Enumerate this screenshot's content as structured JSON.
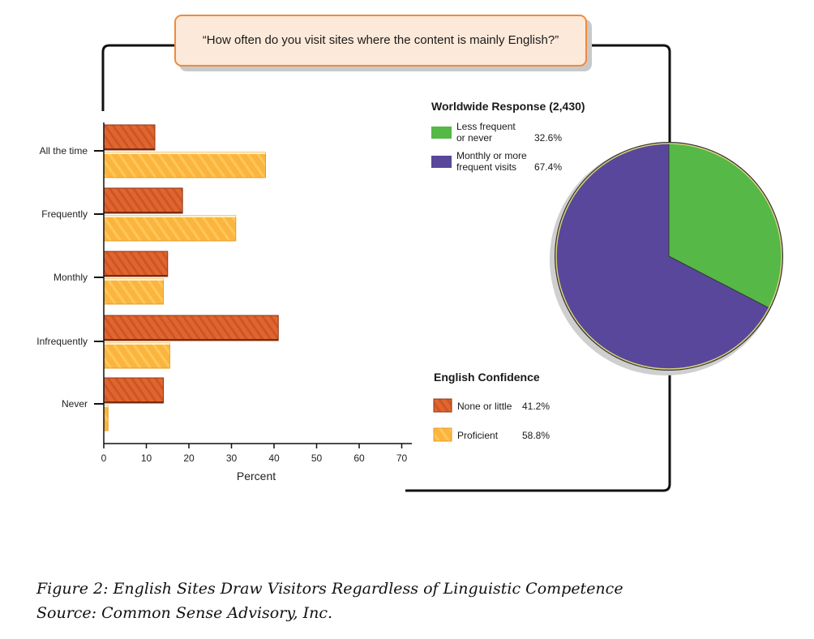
{
  "question": "“How often do you visit sites where the content is mainly English?”",
  "chart_data": [
    {
      "type": "bar",
      "orientation": "horizontal",
      "categories": [
        "All the time",
        "Frequently",
        "Monthly",
        "Infrequently",
        "Never"
      ],
      "series": [
        {
          "name": "None or little",
          "values": [
            12,
            18.5,
            15,
            41,
            14
          ]
        },
        {
          "name": "Proficient",
          "values": [
            38,
            31,
            14,
            15.5,
            1
          ]
        }
      ],
      "xlabel": "Percent",
      "ylabel": "",
      "xlim": [
        0,
        70
      ],
      "xticks": [
        0,
        10,
        20,
        30,
        40,
        50,
        60,
        70
      ],
      "grid": false,
      "colors": {
        "None or little": "#e0662f",
        "Proficient": "#fbb53e"
      }
    },
    {
      "type": "pie",
      "title": "Worldwide Response (2,430)",
      "series": [
        {
          "name": "Less frequent or never",
          "label_lines": [
            "Less frequent",
            "or never"
          ],
          "value": 32.6,
          "value_label": "32.6%",
          "color": "#55b847"
        },
        {
          "name": "Monthly or more frequent visits",
          "label_lines": [
            "Monthly or more",
            "frequent visits"
          ],
          "value": 67.4,
          "value_label": "67.4%",
          "color": "#58479a"
        }
      ]
    }
  ],
  "confidence_legend": {
    "title": "English Confidence",
    "items": [
      {
        "label": "None or little",
        "value_label": "41.2%"
      },
      {
        "label": "Proficient",
        "value_label": "58.8%"
      }
    ]
  },
  "caption": {
    "line1": "Figure 2: English Sites Draw Visitors Regardless of Linguistic Competence",
    "line2": "Source: Common Sense Advisory, Inc."
  }
}
